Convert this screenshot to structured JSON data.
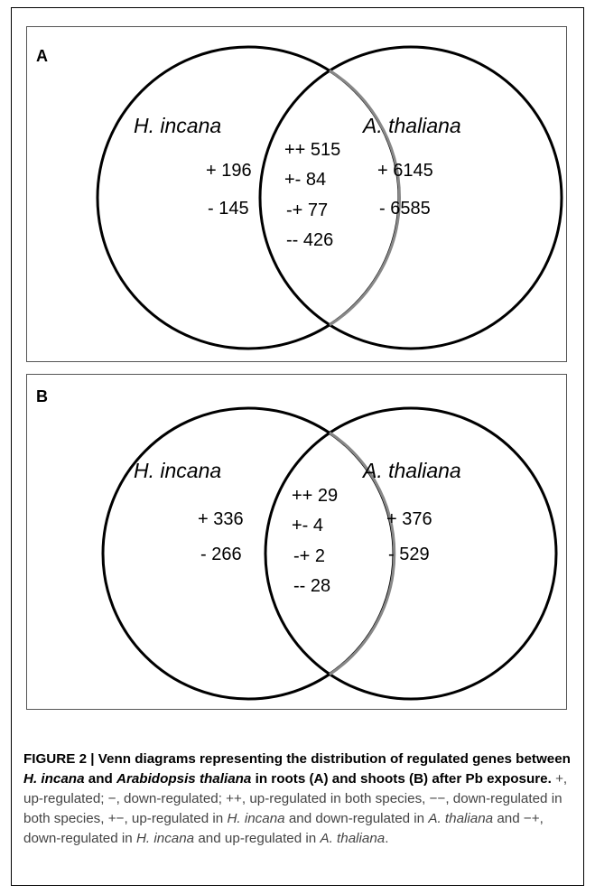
{
  "panels": [
    {
      "label": "A",
      "left_species": "H. incana",
      "right_species": "A. thaliana",
      "left_values": [
        "+ 196",
        "- 145"
      ],
      "right_values": [
        "+ 6145",
        "- 6585"
      ],
      "center_values": [
        "++ 515",
        "+- 84",
        "-+ 77",
        "-- 426"
      ]
    },
    {
      "label": "B",
      "left_species": "H. incana",
      "right_species": "A. thaliana",
      "left_values": [
        "+ 336",
        "- 266"
      ],
      "right_values": [
        "+ 376",
        "- 529"
      ],
      "center_values": [
        "++ 29",
        "+- 4",
        "-+ 2",
        "-- 28"
      ]
    }
  ],
  "caption": {
    "lead_1": "FIGURE 2 | Venn diagrams representing the distribution of regulated genes between ",
    "lead_species_1": "H. incana",
    "lead_2": " and ",
    "lead_species_2": "Arabidopsis thaliana",
    "lead_3": " in roots (A) and shoots (B) after Pb exposure.",
    "rest_1": " +, up-regulated; −, down-regulated; ++, up-regulated in both species, −−, down-regulated in both species, +−, up-regulated in ",
    "rest_sp_1": "H. incana",
    "rest_2": " and down-regulated in ",
    "rest_sp_2": "A. thaliana",
    "rest_3": " and −+, down-regulated in ",
    "rest_sp_3": "H. incana",
    "rest_4": " and up-regulated in ",
    "rest_sp_4": "A. thaliana",
    "rest_5": "."
  }
}
